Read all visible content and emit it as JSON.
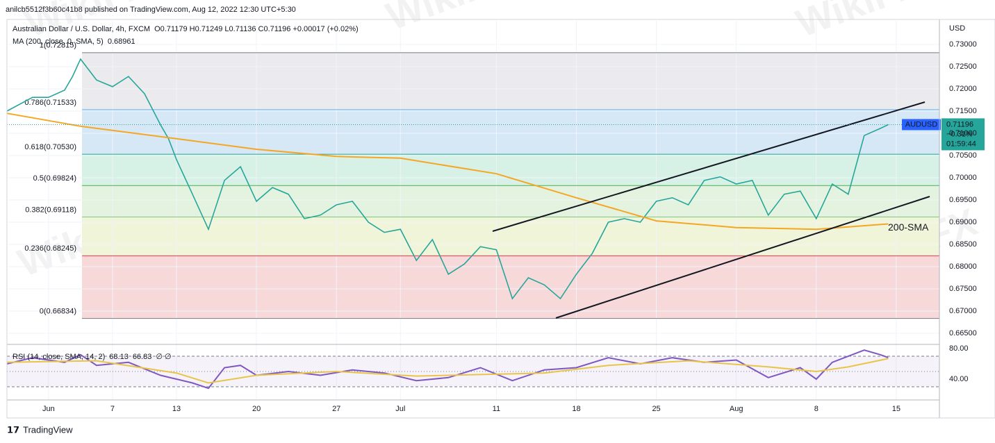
{
  "header": {
    "publisher": "anilcb5512f3b60c41b8 published on TradingView.com, Aug 12, 2022 12:30 UTC+5:30",
    "footer": "TradingView",
    "watermark": "WikiFX"
  },
  "chart_data": [
    {
      "type": "line",
      "axis_unit": "USD",
      "ohlc": "O0.71179 H0.71249 L0.71136 C0.71196 +0.00017 (+0.02%)",
      "symbol": "AUDUSD",
      "last_price_label": "0.71196",
      "change_label": "−0.31%",
      "countdown": "01:59:44",
      "annotation": "200-SMA",
      "xlim": [
        -2.6,
        55.7
      ],
      "xticks": [
        {
          "value": 0,
          "label": "Jun"
        },
        {
          "value": 4,
          "label": "7"
        },
        {
          "value": 8,
          "label": "13"
        },
        {
          "value": 13,
          "label": "20"
        },
        {
          "value": 18,
          "label": "27"
        },
        {
          "value": 22,
          "label": "Jul"
        },
        {
          "value": 28,
          "label": "11"
        },
        {
          "value": 33,
          "label": "18"
        },
        {
          "value": 38,
          "label": "25"
        },
        {
          "value": 43,
          "label": "Aug"
        },
        {
          "value": 48,
          "label": "8"
        },
        {
          "value": 53,
          "label": "15"
        }
      ],
      "ylim": [
        0.66266,
        0.73531
      ],
      "yticks": [
        {
          "value": 0.73,
          "label": "0.73000"
        },
        {
          "value": 0.725,
          "label": "0.72500"
        },
        {
          "value": 0.72,
          "label": "0.72000"
        },
        {
          "value": 0.715,
          "label": "0.71500"
        },
        {
          "value": 0.71,
          "label": "0.71000"
        },
        {
          "value": 0.705,
          "label": "0.70500"
        },
        {
          "value": 0.7,
          "label": "0.70000"
        },
        {
          "value": 0.695,
          "label": "0.69500"
        },
        {
          "value": 0.69,
          "label": "0.69000"
        },
        {
          "value": 0.685,
          "label": "0.68500"
        },
        {
          "value": 0.68,
          "label": "0.68000"
        },
        {
          "value": 0.675,
          "label": "0.67500"
        },
        {
          "value": 0.67,
          "label": "0.67000"
        },
        {
          "value": 0.665,
          "label": "0.66500"
        }
      ],
      "grid": true,
      "fib_levels": [
        {
          "value": 0.72815,
          "label": "1(0.72815)",
          "color": "#787b86",
          "fill": "#ebebed"
        },
        {
          "value": 0.71533,
          "label": "0.786(0.71533)",
          "color": "#64b5f6",
          "fill": "#d6e8f5"
        },
        {
          "value": 0.7053,
          "label": "0.618(0.70530)",
          "color": "#26a69a",
          "fill": "#d7f1e6"
        },
        {
          "value": 0.69824,
          "label": "0.5(0.69824)",
          "color": "#4caf50",
          "fill": "#e3f3df"
        },
        {
          "value": 0.69118,
          "label": "0.382(0.69118)",
          "color": "#81c784",
          "fill": "#f0f4d8"
        },
        {
          "value": 0.68245,
          "label": "0.236(0.68245)",
          "color": "#f23645",
          "fill": "#f7d9d9"
        },
        {
          "value": 0.66834,
          "label": "0(0.66834)",
          "color": "#787b86",
          "fill": "none"
        }
      ],
      "series": [
        {
          "name": "Australian Dollar / U.S. Dollar, 4h, FXCM",
          "color": "#26a69a",
          "x": [
            -2.6,
            -1,
            0,
            1,
            1.5,
            2,
            3,
            4,
            5,
            6,
            7,
            7.5,
            8,
            9,
            10,
            11,
            12,
            13,
            14,
            15,
            16,
            17,
            18,
            19,
            20,
            21,
            22,
            23,
            24,
            25,
            26,
            27,
            28,
            29,
            30,
            31,
            32,
            33,
            34,
            35,
            36,
            37,
            38,
            39,
            40,
            41,
            42,
            43,
            44,
            45,
            46,
            47,
            48,
            49,
            50,
            51,
            52,
            52.5
          ],
          "values": [
            0.715,
            0.7181,
            0.7181,
            0.7197,
            0.7228,
            0.7267,
            0.722,
            0.7205,
            0.7228,
            0.7189,
            0.7119,
            0.7088,
            0.7041,
            0.6963,
            0.6884,
            0.6994,
            0.7025,
            0.6947,
            0.6978,
            0.6963,
            0.6908,
            0.6916,
            0.6939,
            0.6947,
            0.69,
            0.6877,
            0.6884,
            0.6814,
            0.6861,
            0.6783,
            0.6806,
            0.6845,
            0.6838,
            0.6728,
            0.6775,
            0.6759,
            0.6728,
            0.6783,
            0.683,
            0.69,
            0.6908,
            0.69,
            0.6947,
            0.6955,
            0.6939,
            0.6994,
            0.7002,
            0.6986,
            0.6994,
            0.6916,
            0.6963,
            0.697,
            0.6908,
            0.6986,
            0.6963,
            0.7095,
            0.7111,
            0.71196
          ]
        },
        {
          "name": "MA (200, close, 0, SMA, 5)",
          "legend_value": "0.68961",
          "color": "#f5a623",
          "x": [
            -2.6,
            2,
            8,
            13,
            18,
            22,
            28,
            33,
            38,
            43,
            48,
            52.5
          ],
          "values": [
            0.7145,
            0.7116,
            0.7088,
            0.7064,
            0.7048,
            0.7044,
            0.7009,
            0.6955,
            0.6903,
            0.6888,
            0.6884,
            0.68961
          ]
        }
      ]
    },
    {
      "type": "line",
      "xlim": [
        -2.6,
        55.7
      ],
      "ylim": [
        13.6,
        84.5
      ],
      "yticks": [
        {
          "value": 80,
          "label": "80.00"
        },
        {
          "value": 40,
          "label": "40.00"
        }
      ],
      "band_levels": [
        70,
        50,
        30
      ],
      "band_color": "#7e57c2",
      "legend_extra": "∅ ∅",
      "series": [
        {
          "name": "RSI (14, close, SMA, 14, 2)",
          "legend_value": "68.13",
          "color": "#7e57c2",
          "x": [
            -2.6,
            -1,
            1,
            2,
            3,
            5,
            7,
            8,
            9,
            10,
            11,
            12,
            13,
            15,
            17,
            19,
            21,
            23,
            25,
            27,
            29,
            31,
            33,
            35,
            37,
            39,
            41,
            43,
            45,
            47,
            48,
            49,
            51,
            52,
            52.5
          ],
          "values": [
            60,
            68,
            62,
            72,
            58,
            62,
            45,
            40,
            35,
            28,
            55,
            58,
            45,
            50,
            45,
            52,
            48,
            38,
            42,
            55,
            38,
            52,
            55,
            68,
            60,
            68,
            62,
            65,
            42,
            55,
            40,
            62,
            78,
            72,
            68.13
          ]
        },
        {
          "legend_value": "66.83",
          "color": "#e8c547",
          "x": [
            -2.6,
            3,
            8,
            10,
            13,
            18,
            23,
            27,
            31,
            35,
            40,
            45,
            48,
            50,
            52.5
          ],
          "values": [
            62,
            64,
            48,
            35,
            45,
            50,
            44,
            46,
            48,
            58,
            64,
            56,
            50,
            56,
            66.83
          ]
        }
      ]
    }
  ]
}
